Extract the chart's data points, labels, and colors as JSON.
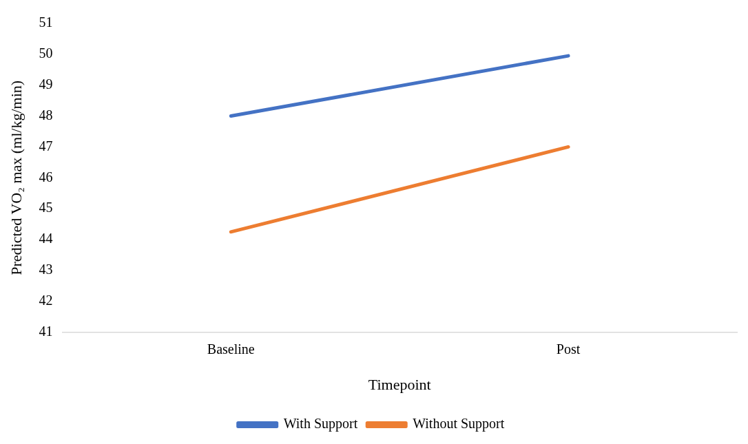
{
  "chart_data": {
    "type": "line",
    "xlabel": "Timepoint",
    "ylabel": "Predicted VO₂ max (ml/kg/min)",
    "categories": [
      "Baseline",
      "Post"
    ],
    "series": [
      {
        "name": "With Support",
        "color": "#4472c4",
        "values": [
          48.0,
          49.95
        ]
      },
      {
        "name": "Without Support",
        "color": "#ed7d31",
        "values": [
          44.25,
          47.0
        ]
      }
    ],
    "ylim": [
      41,
      51
    ],
    "yticks": [
      41,
      42,
      43,
      44,
      45,
      46,
      47,
      48,
      49,
      50,
      51
    ],
    "grid": false,
    "legend": "bottom",
    "marker": "none",
    "line_style": "solid"
  }
}
